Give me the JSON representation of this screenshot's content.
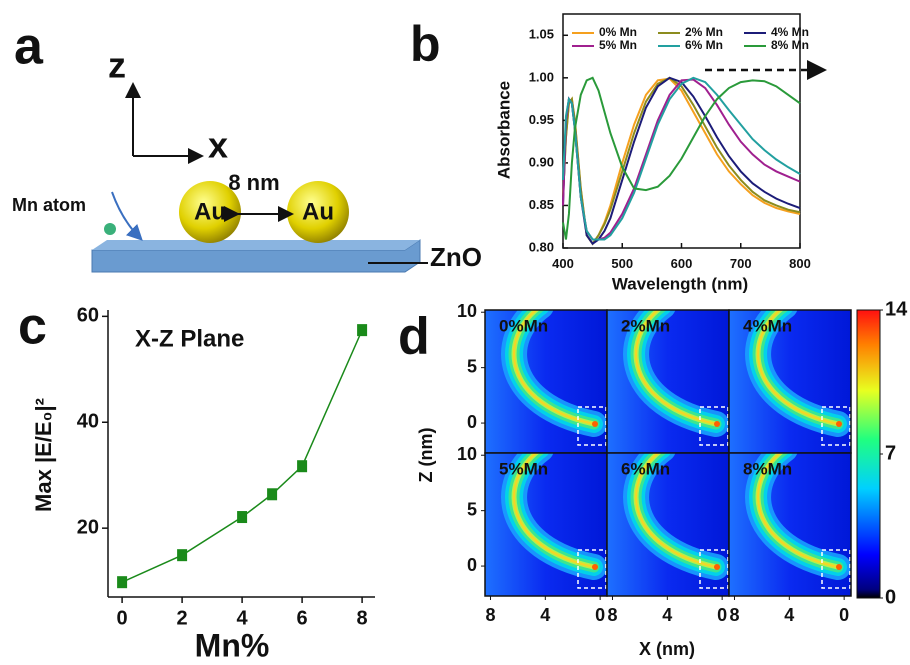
{
  "diagram": {
    "panel_label": "a",
    "axis_z": "z",
    "axis_x": "x",
    "distance": "8 nm",
    "particles": [
      "Au",
      "Au"
    ],
    "atom": "Mn atom",
    "substrate": "ZnO"
  },
  "chart_data": [
    {
      "type": "line",
      "panel_label": "b",
      "xlabel": "Wavelength (nm)",
      "ylabel": "Absorbance",
      "frame": true,
      "x": [
        400,
        405,
        410,
        415,
        420,
        425,
        430,
        440,
        450,
        460,
        470,
        480,
        500,
        520,
        540,
        560,
        580,
        600,
        620,
        640,
        660,
        680,
        700,
        720,
        740,
        760,
        780,
        800
      ],
      "series": [
        {
          "name": "0% Mn",
          "color": "#f5a01e",
          "values": [
            0.86,
            0.93,
            0.97,
            0.975,
            0.95,
            0.91,
            0.87,
            0.815,
            0.805,
            0.815,
            0.83,
            0.85,
            0.9,
            0.945,
            0.98,
            0.997,
            0.999,
            0.985,
            0.96,
            0.935,
            0.91,
            0.89,
            0.875,
            0.862,
            0.853,
            0.847,
            0.843,
            0.84
          ]
        },
        {
          "name": "2% Mn",
          "color": "#8c8c1e",
          "values": [
            0.86,
            0.93,
            0.97,
            0.975,
            0.95,
            0.91,
            0.87,
            0.815,
            0.805,
            0.815,
            0.828,
            0.845,
            0.89,
            0.935,
            0.972,
            0.993,
            1.0,
            0.99,
            0.968,
            0.943,
            0.918,
            0.897,
            0.88,
            0.866,
            0.856,
            0.85,
            0.845,
            0.842
          ]
        },
        {
          "name": "4% Mn",
          "color": "#1c1c78",
          "values": [
            0.85,
            0.95,
            0.975,
            0.97,
            0.94,
            0.9,
            0.86,
            0.815,
            0.805,
            0.81,
            0.82,
            0.835,
            0.88,
            0.925,
            0.965,
            0.99,
            1.0,
            0.995,
            0.978,
            0.955,
            0.93,
            0.908,
            0.89,
            0.876,
            0.866,
            0.858,
            0.852,
            0.847
          ]
        },
        {
          "name": "5% Mn",
          "color": "#a0208f",
          "values": [
            0.85,
            0.95,
            0.975,
            0.97,
            0.94,
            0.9,
            0.86,
            0.82,
            0.81,
            0.81,
            0.812,
            0.818,
            0.84,
            0.87,
            0.91,
            0.95,
            0.98,
            0.997,
            0.998,
            0.988,
            0.968,
            0.945,
            0.925,
            0.91,
            0.898,
            0.89,
            0.884,
            0.878
          ]
        },
        {
          "name": "6% Mn",
          "color": "#22a0a0",
          "values": [
            0.88,
            0.955,
            0.975,
            0.97,
            0.94,
            0.9,
            0.86,
            0.82,
            0.81,
            0.81,
            0.81,
            0.815,
            0.835,
            0.865,
            0.905,
            0.945,
            0.975,
            0.993,
            1.0,
            0.995,
            0.98,
            0.962,
            0.945,
            0.928,
            0.915,
            0.904,
            0.895,
            0.887
          ]
        },
        {
          "name": "8% Mn",
          "color": "#2a9a3a",
          "values": [
            0.83,
            0.81,
            0.84,
            0.9,
            0.94,
            0.96,
            0.98,
            0.997,
            1.0,
            0.985,
            0.96,
            0.935,
            0.895,
            0.87,
            0.868,
            0.872,
            0.885,
            0.905,
            0.93,
            0.955,
            0.975,
            0.988,
            0.995,
            0.997,
            0.996,
            0.99,
            0.98,
            0.97
          ]
        }
      ],
      "xlim": [
        400,
        800
      ],
      "ylim": [
        0.8,
        1.075
      ],
      "xticks": [
        400,
        500,
        600,
        700,
        800
      ],
      "yticks": [
        {
          "value": 0.8,
          "label": "0.80"
        },
        {
          "value": 0.85,
          "label": "0.85"
        },
        {
          "value": 0.9,
          "label": "0.90"
        },
        {
          "value": 0.95,
          "label": "0.95"
        },
        {
          "value": 1.0,
          "label": "1.00"
        },
        {
          "value": 1.05,
          "label": "1.05"
        }
      ]
    },
    {
      "type": "line",
      "panel_label": "c",
      "title": "X-Z Plane",
      "xlabel": "Mn%",
      "ylabel": "Max |E/E₀|²",
      "frame": false,
      "markers": "square",
      "color": "#1a8a1a",
      "x": [
        0,
        2,
        4,
        5,
        6,
        8
      ],
      "values": [
        9.8,
        14.9,
        22.1,
        26.4,
        31.7,
        57.4
      ],
      "xlim": [
        -0.47,
        8.43
      ],
      "ylim": [
        7,
        61.2
      ],
      "xticks": [
        0,
        2,
        4,
        6,
        8
      ],
      "yticks": [
        20,
        40,
        60
      ]
    },
    {
      "type": "heatmap",
      "panel_label": "d",
      "panels": [
        "0%Mn",
        "2%Mn",
        "4%Mn",
        "5%Mn",
        "6%Mn",
        "8%Mn"
      ],
      "xlabel": "X (nm)",
      "ylabel": "Z (nm)",
      "xlim": [
        8.4,
        -0.5
      ],
      "ylim": [
        -2.7,
        10.2
      ],
      "xticks": [
        8,
        4,
        0
      ],
      "yticks": [
        0,
        5,
        10
      ],
      "colorbar": {
        "lim": [
          0,
          14
        ],
        "ticks": [
          0,
          7,
          14
        ]
      }
    }
  ]
}
